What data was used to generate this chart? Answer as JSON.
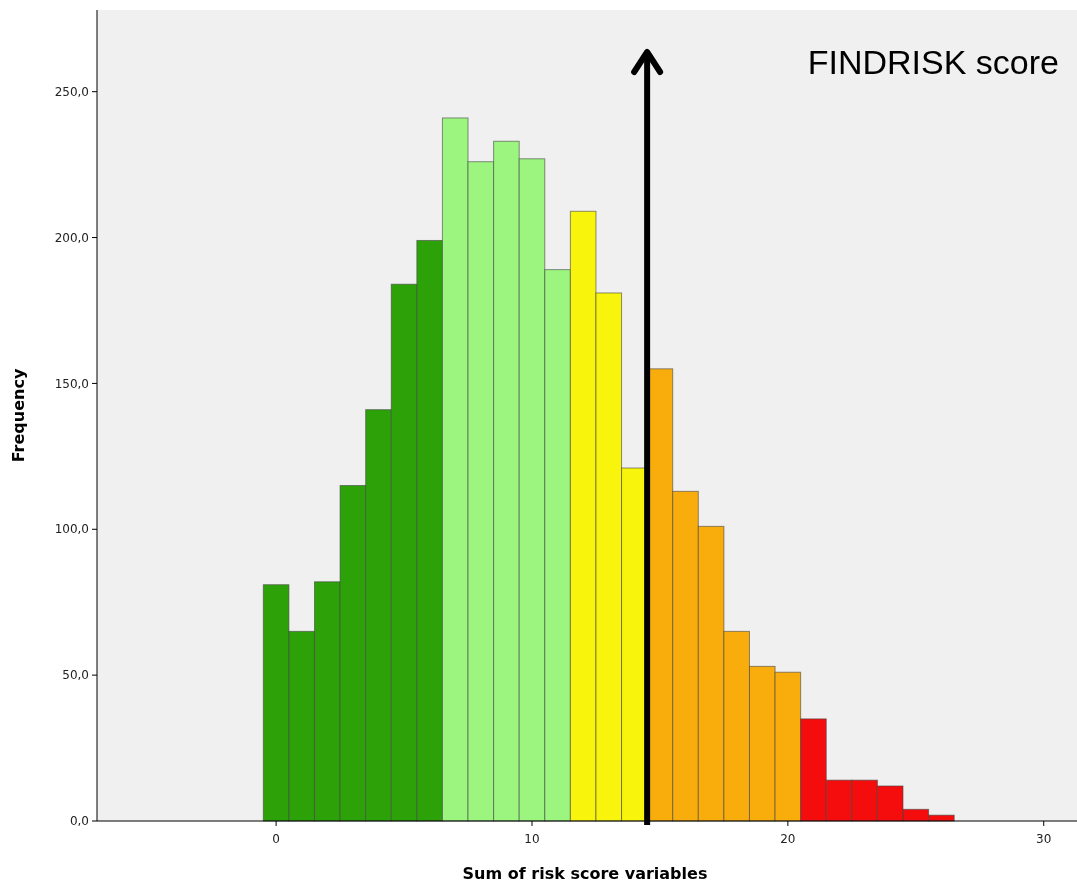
{
  "chart_data": {
    "type": "histogram",
    "xlabel": "Sum of risk score variables",
    "ylabel": "Frequency",
    "bins": [
      -0.5,
      0.5,
      1.5,
      2.5,
      3.5,
      4.5,
      5.5,
      6.5,
      7.5,
      8.5,
      9.5,
      10.5,
      11.5,
      12.5,
      13.5,
      14.5,
      15.5,
      16.5,
      17.5,
      18.5,
      19.5,
      20.5,
      21.5,
      22.5,
      23.5,
      24.5,
      25.5,
      26.5
    ],
    "values": [
      81,
      65,
      82,
      115,
      141,
      184,
      199,
      241,
      226,
      233,
      227,
      189,
      209,
      181,
      121,
      155,
      113,
      101,
      65,
      53,
      51,
      35,
      14,
      14,
      12,
      4,
      2
    ],
    "colors": [
      "#2ca208",
      "#2ca208",
      "#2ca208",
      "#2ca208",
      "#2ca208",
      "#2ca208",
      "#2ca208",
      "#9bf57f",
      "#9bf57f",
      "#9bf57f",
      "#9bf57f",
      "#9bf57f",
      "#f8f40c",
      "#f8f40c",
      "#f8f40c",
      "#f9ad0d",
      "#f9ad0d",
      "#f9ad0d",
      "#f9ad0d",
      "#f9ad0d",
      "#f9ad0d",
      "#f50d0d",
      "#f50d0d",
      "#f50d0d",
      "#f50d0d",
      "#f50d0d",
      "#f50d0d"
    ],
    "xlim": [
      -7,
      31.3
    ],
    "xticks": [
      0,
      10,
      20,
      30
    ],
    "ylim": [
      0,
      278
    ],
    "yticks": [
      {
        "value": 0,
        "label": "0,0"
      },
      {
        "value": 50,
        "label": "50,0"
      },
      {
        "value": 100,
        "label": "100,0"
      },
      {
        "value": 150,
        "label": "150,0"
      },
      {
        "value": 200,
        "label": "200,0"
      },
      {
        "value": 250,
        "label": "250,0"
      }
    ],
    "grid": false,
    "ref_lines": [
      {
        "axis": "x",
        "value": 14.5,
        "label": "FINDRISK score",
        "color": "#000000"
      }
    ]
  }
}
